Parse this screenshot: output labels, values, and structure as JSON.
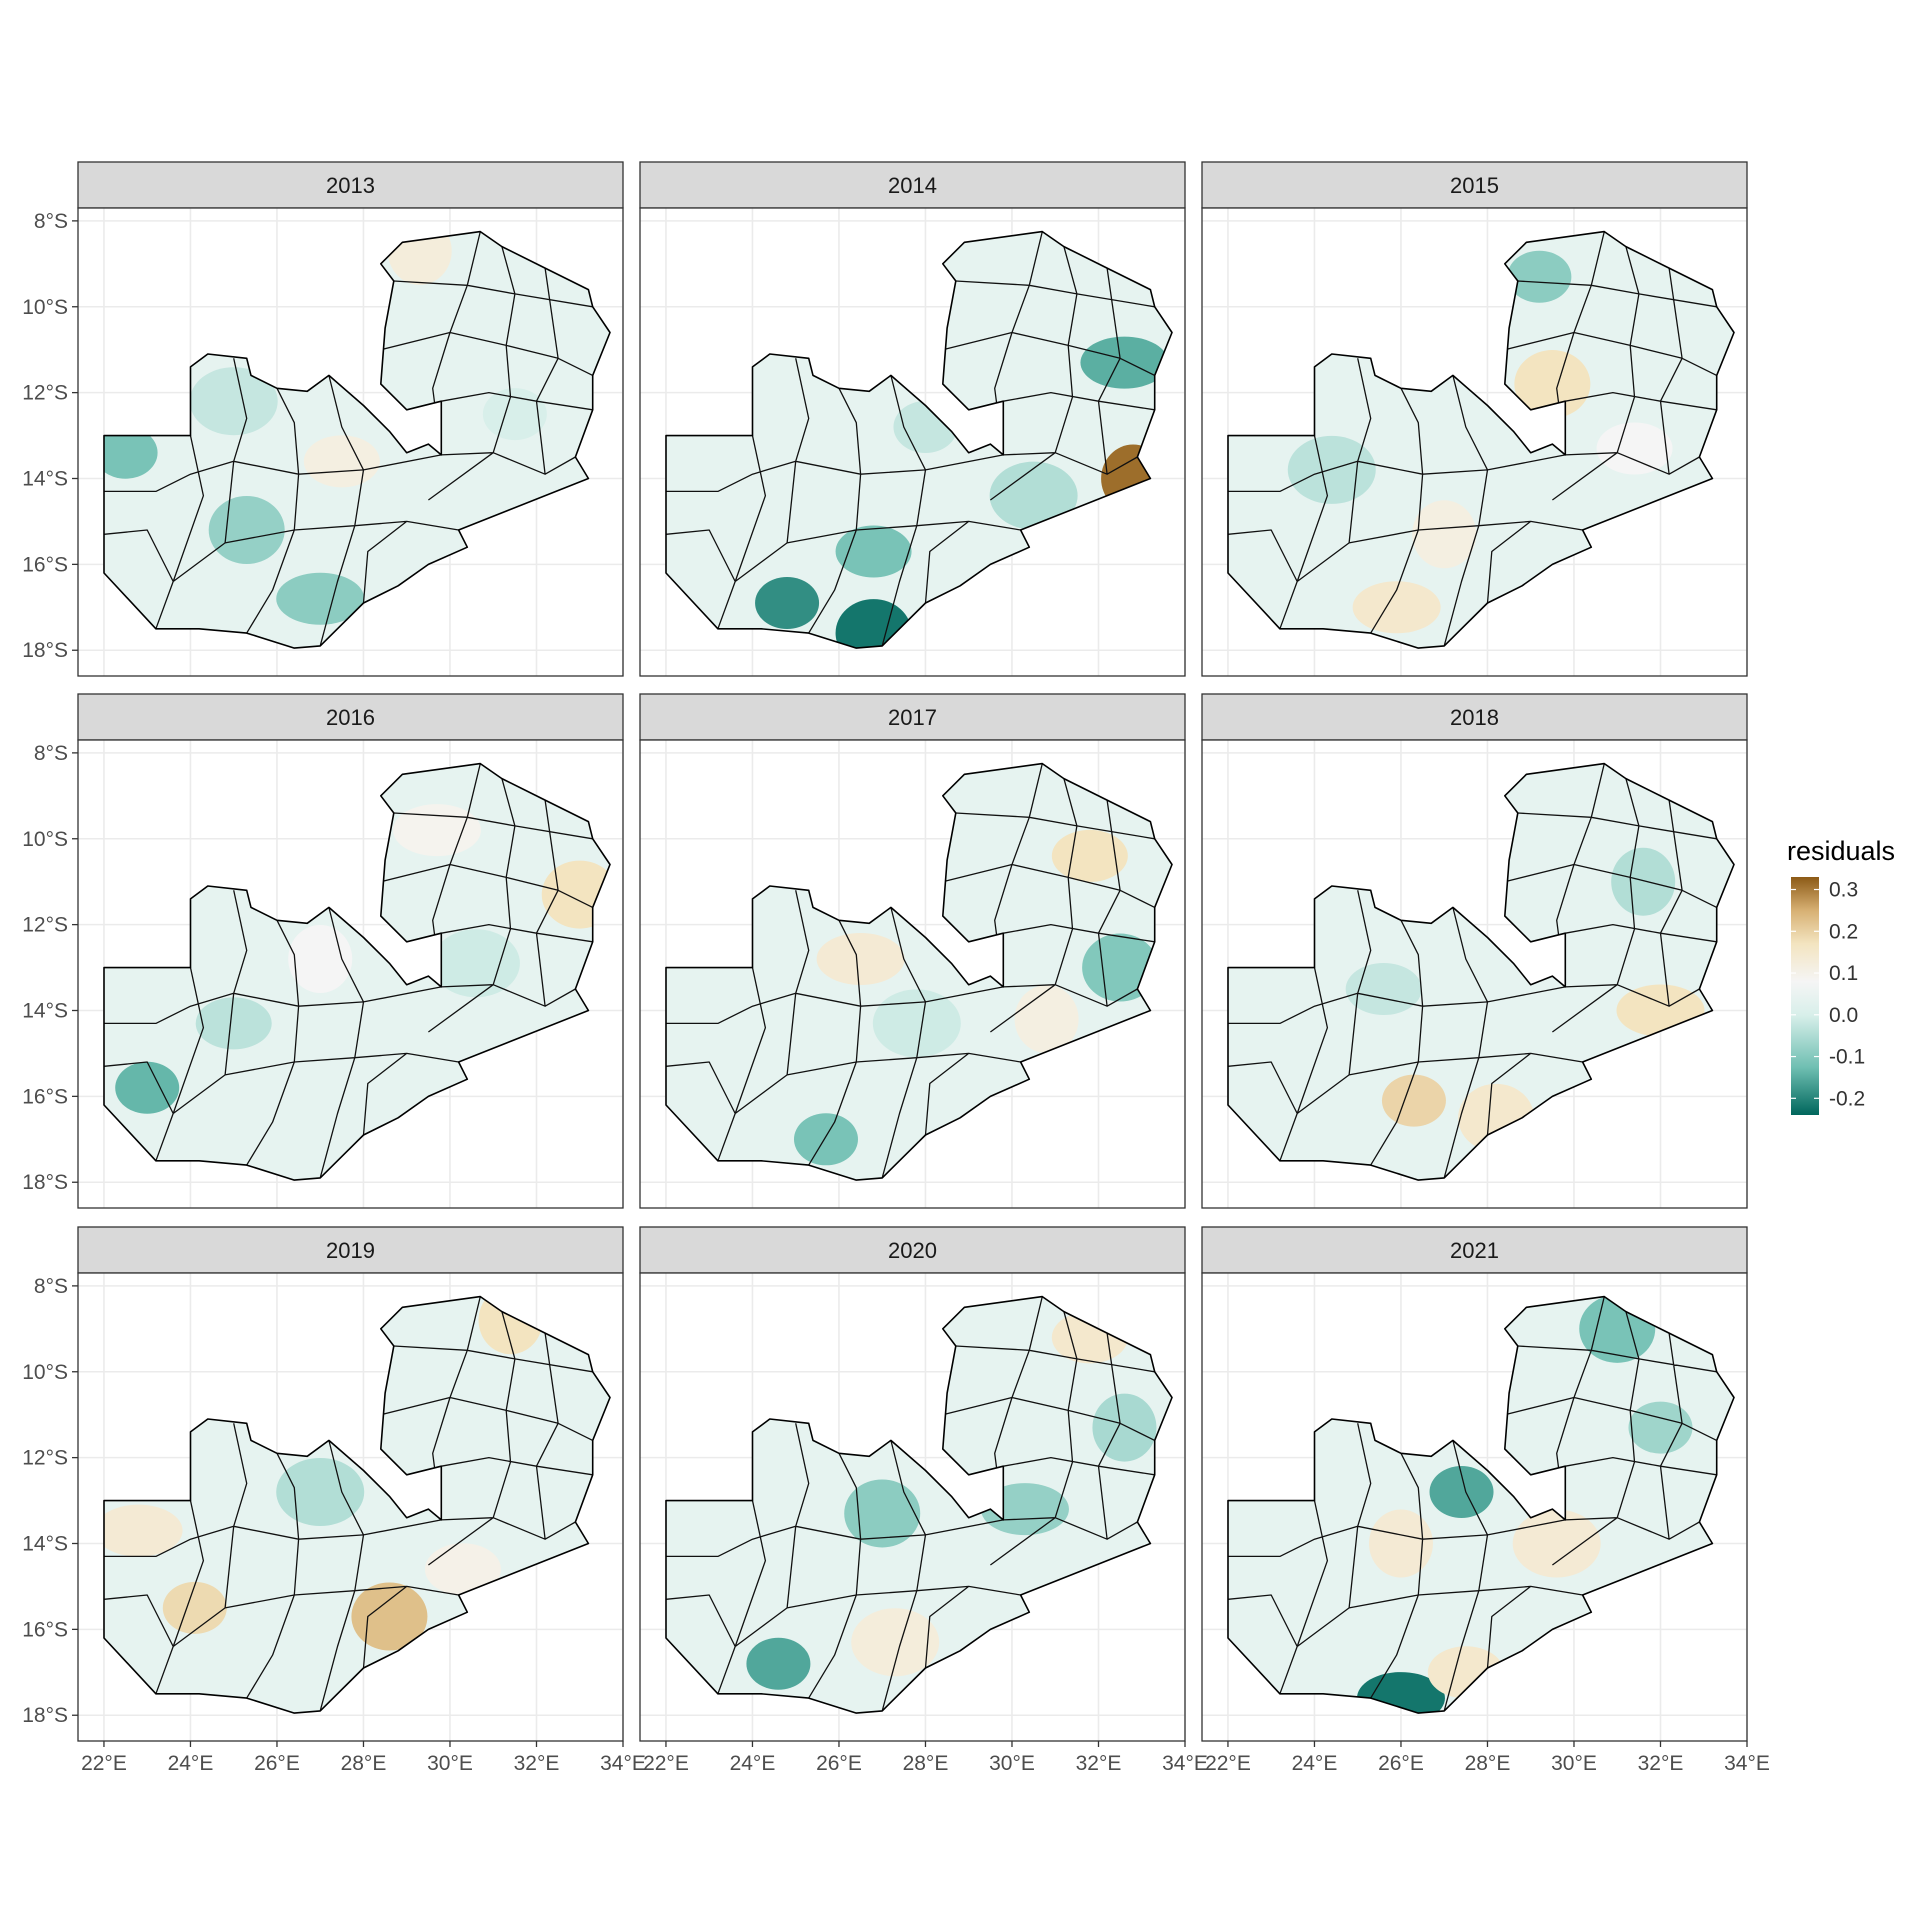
{
  "facets": [
    "2013",
    "2014",
    "2015",
    "2016",
    "2017",
    "2018",
    "2019",
    "2020",
    "2021"
  ],
  "y_axis_labels": [
    "8°S",
    "10°S",
    "12°S",
    "14°S",
    "16°S",
    "18°S"
  ],
  "x_axis_labels": [
    "22°E",
    "24°E",
    "26°E",
    "28°E",
    "30°E",
    "32°E",
    "34°E"
  ],
  "legend": {
    "title": "residuals",
    "ticks": [
      "0.3",
      "0.2",
      "0.1",
      "0.0",
      "-0.1",
      "-0.2"
    ],
    "tick_values": [
      0.3,
      0.2,
      0.1,
      0.0,
      -0.1,
      -0.2
    ],
    "range": [
      -0.24,
      0.33
    ],
    "colors": {
      "high": "#8c5a16",
      "mid_high": "#f5e3bc",
      "mid": "#f5f5f5",
      "mid_low": "#c6e6e0",
      "low": "#00665c"
    }
  },
  "chart_data": {
    "type": "choropleth-map",
    "fill_variable": "residuals",
    "facet_by": "year",
    "lon_ticks": [
      22,
      24,
      26,
      28,
      30,
      32,
      34
    ],
    "lat_ticks": [
      -8,
      -10,
      -12,
      -14,
      -16,
      -18
    ],
    "lon_range": [
      21.4,
      34.0
    ],
    "lat_range": [
      -18.6,
      -7.7
    ],
    "district_residual_ranges": [
      {
        "year": "2013",
        "min": -0.12,
        "max": 0.07
      },
      {
        "year": "2014",
        "min": -0.22,
        "max": 0.3
      },
      {
        "year": "2015",
        "min": -0.1,
        "max": 0.1
      },
      {
        "year": "2016",
        "min": -0.14,
        "max": 0.1
      },
      {
        "year": "2017",
        "min": -0.13,
        "max": 0.1
      },
      {
        "year": "2018",
        "min": -0.06,
        "max": 0.13
      },
      {
        "year": "2019",
        "min": -0.08,
        "max": 0.17
      },
      {
        "year": "2020",
        "min": -0.16,
        "max": 0.08
      },
      {
        "year": "2021",
        "min": -0.22,
        "max": 0.1
      }
    ]
  }
}
